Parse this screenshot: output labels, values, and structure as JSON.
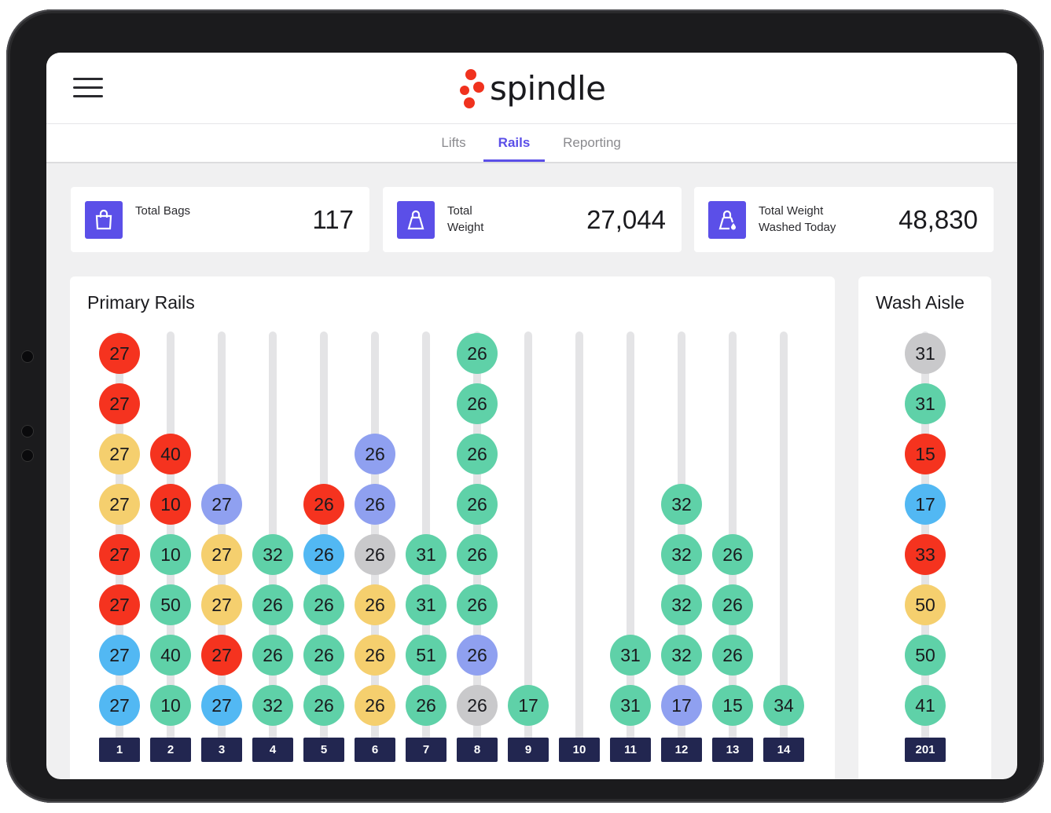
{
  "app": {
    "logo_text": "spindle",
    "logo_color": "#f0321e",
    "accent": "#5b4fe8"
  },
  "tabs": [
    {
      "label": "Lifts",
      "active": false
    },
    {
      "label": "Rails",
      "active": true
    },
    {
      "label": "Reporting",
      "active": false
    }
  ],
  "stats": [
    {
      "label": "Total Bags",
      "value": "117",
      "icon": "shopping-bag-icon"
    },
    {
      "label": "Total Weight",
      "value": "27,044",
      "icon": "weight-bag-icon"
    },
    {
      "label": "Total Weight Washed Today",
      "value": "48,830",
      "icon": "wash-bag-icon"
    }
  ],
  "colors": {
    "red": "#f5331f",
    "yellow": "#f5cf6e",
    "blue": "#52b8f3",
    "green": "#5fd1a8",
    "purple": "#8fa0f0",
    "gray": "#c9c9cb"
  },
  "primary_rails": {
    "title": "Primary Rails",
    "rails": [
      {
        "label": "1",
        "bags": [
          {
            "v": "27",
            "c": "red"
          },
          {
            "v": "27",
            "c": "red"
          },
          {
            "v": "27",
            "c": "yellow"
          },
          {
            "v": "27",
            "c": "yellow"
          },
          {
            "v": "27",
            "c": "red"
          },
          {
            "v": "27",
            "c": "red"
          },
          {
            "v": "27",
            "c": "blue"
          },
          {
            "v": "27",
            "c": "blue"
          }
        ]
      },
      {
        "label": "2",
        "bags": [
          {
            "v": "40",
            "c": "red"
          },
          {
            "v": "10",
            "c": "red"
          },
          {
            "v": "10",
            "c": "green"
          },
          {
            "v": "50",
            "c": "green"
          },
          {
            "v": "40",
            "c": "green"
          },
          {
            "v": "10",
            "c": "green"
          }
        ]
      },
      {
        "label": "3",
        "bags": [
          {
            "v": "27",
            "c": "purple"
          },
          {
            "v": "27",
            "c": "yellow"
          },
          {
            "v": "27",
            "c": "yellow"
          },
          {
            "v": "27",
            "c": "red"
          },
          {
            "v": "27",
            "c": "blue"
          }
        ]
      },
      {
        "label": "4",
        "bags": [
          {
            "v": "32",
            "c": "green"
          },
          {
            "v": "26",
            "c": "green"
          },
          {
            "v": "26",
            "c": "green"
          },
          {
            "v": "32",
            "c": "green"
          }
        ]
      },
      {
        "label": "5",
        "bags": [
          {
            "v": "26",
            "c": "red"
          },
          {
            "v": "26",
            "c": "blue"
          },
          {
            "v": "26",
            "c": "green"
          },
          {
            "v": "26",
            "c": "green"
          },
          {
            "v": "26",
            "c": "green"
          }
        ]
      },
      {
        "label": "6",
        "bags": [
          {
            "v": "26",
            "c": "purple"
          },
          {
            "v": "26",
            "c": "purple"
          },
          {
            "v": "26",
            "c": "gray"
          },
          {
            "v": "26",
            "c": "yellow"
          },
          {
            "v": "26",
            "c": "yellow"
          },
          {
            "v": "26",
            "c": "yellow"
          }
        ]
      },
      {
        "label": "7",
        "bags": [
          {
            "v": "31",
            "c": "green"
          },
          {
            "v": "31",
            "c": "green"
          },
          {
            "v": "51",
            "c": "green"
          },
          {
            "v": "26",
            "c": "green"
          }
        ]
      },
      {
        "label": "8",
        "bags": [
          {
            "v": "26",
            "c": "green"
          },
          {
            "v": "26",
            "c": "green"
          },
          {
            "v": "26",
            "c": "green"
          },
          {
            "v": "26",
            "c": "green"
          },
          {
            "v": "26",
            "c": "green"
          },
          {
            "v": "26",
            "c": "green"
          },
          {
            "v": "26",
            "c": "purple"
          },
          {
            "v": "26",
            "c": "gray"
          }
        ]
      },
      {
        "label": "9",
        "bags": [
          {
            "v": "17",
            "c": "green"
          }
        ]
      },
      {
        "label": "10",
        "bags": []
      },
      {
        "label": "11",
        "bags": [
          {
            "v": "31",
            "c": "green"
          },
          {
            "v": "31",
            "c": "green"
          }
        ]
      },
      {
        "label": "12",
        "bags": [
          {
            "v": "32",
            "c": "green"
          },
          {
            "v": "32",
            "c": "green"
          },
          {
            "v": "32",
            "c": "green"
          },
          {
            "v": "32",
            "c": "green"
          },
          {
            "v": "17",
            "c": "purple"
          }
        ]
      },
      {
        "label": "13",
        "bags": [
          {
            "v": "26",
            "c": "green"
          },
          {
            "v": "26",
            "c": "green"
          },
          {
            "v": "26",
            "c": "green"
          },
          {
            "v": "15",
            "c": "green"
          }
        ]
      },
      {
        "label": "14",
        "bags": [
          {
            "v": "34",
            "c": "green"
          }
        ]
      }
    ]
  },
  "wash_aisle": {
    "title": "Wash Aisle",
    "rails": [
      {
        "label": "201",
        "bags": [
          {
            "v": "31",
            "c": "gray"
          },
          {
            "v": "31",
            "c": "green"
          },
          {
            "v": "15",
            "c": "red"
          },
          {
            "v": "17",
            "c": "blue"
          },
          {
            "v": "33",
            "c": "red"
          },
          {
            "v": "50",
            "c": "yellow"
          },
          {
            "v": "50",
            "c": "green"
          },
          {
            "v": "41",
            "c": "green"
          }
        ]
      }
    ]
  }
}
